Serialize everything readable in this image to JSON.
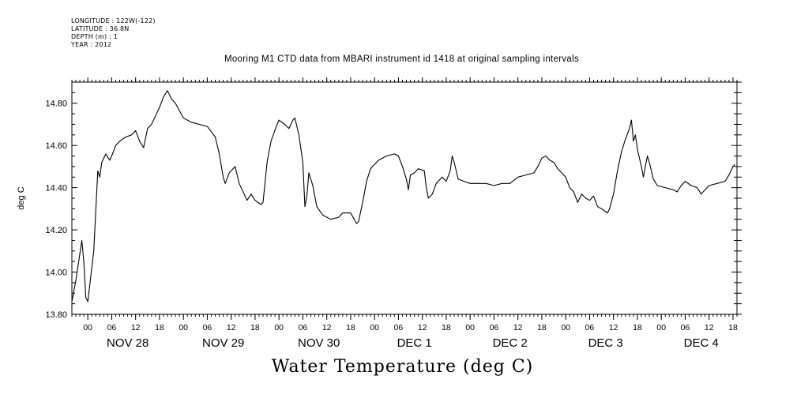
{
  "header_info": {
    "longitude": "LONGITUDE : 122W(-122)",
    "latitude": "LATITUDE : 36.8N",
    "depth": "DEPTH (m) : 1",
    "year": "YEAR : 2012"
  },
  "chart_data": {
    "type": "line",
    "title": "Mooring M1 CTD data from MBARI instrument id 1418 at original sampling intervals",
    "ylabel": "deg C",
    "xlabel": "Water Temperature (deg C)",
    "ylim": [
      13.8,
      14.9
    ],
    "yticks": [
      {
        "value": 13.8,
        "label": "13.80"
      },
      {
        "value": 14.0,
        "label": "14.00"
      },
      {
        "value": 14.2,
        "label": "14.20"
      },
      {
        "value": 14.4,
        "label": "14.40"
      },
      {
        "value": 14.6,
        "label": "14.60"
      },
      {
        "value": 14.8,
        "label": "14.80"
      }
    ],
    "xlim": [
      "2012-11-27 20:00",
      "2012-12-04 19:00"
    ],
    "x_hour_ticks": [
      {
        "t": "2012-11-28 00:00",
        "label": "00"
      },
      {
        "t": "2012-11-28 06:00",
        "label": "06"
      },
      {
        "t": "2012-11-28 12:00",
        "label": "12"
      },
      {
        "t": "2012-11-28 18:00",
        "label": "18"
      },
      {
        "t": "2012-11-29 00:00",
        "label": "00"
      },
      {
        "t": "2012-11-29 06:00",
        "label": "06"
      },
      {
        "t": "2012-11-29 12:00",
        "label": "12"
      },
      {
        "t": "2012-11-29 18:00",
        "label": "18"
      },
      {
        "t": "2012-11-30 00:00",
        "label": "00"
      },
      {
        "t": "2012-11-30 06:00",
        "label": "06"
      },
      {
        "t": "2012-11-30 12:00",
        "label": "12"
      },
      {
        "t": "2012-11-30 18:00",
        "label": "18"
      },
      {
        "t": "2012-12-01 00:00",
        "label": "00"
      },
      {
        "t": "2012-12-01 06:00",
        "label": "06"
      },
      {
        "t": "2012-12-01 12:00",
        "label": "12"
      },
      {
        "t": "2012-12-01 18:00",
        "label": "18"
      },
      {
        "t": "2012-12-02 00:00",
        "label": "00"
      },
      {
        "t": "2012-12-02 06:00",
        "label": "06"
      },
      {
        "t": "2012-12-02 12:00",
        "label": "12"
      },
      {
        "t": "2012-12-02 18:00",
        "label": "18"
      },
      {
        "t": "2012-12-03 00:00",
        "label": "00"
      },
      {
        "t": "2012-12-03 06:00",
        "label": "06"
      },
      {
        "t": "2012-12-03 12:00",
        "label": "12"
      },
      {
        "t": "2012-12-03 18:00",
        "label": "18"
      },
      {
        "t": "2012-12-04 00:00",
        "label": "00"
      },
      {
        "t": "2012-12-04 06:00",
        "label": "06"
      },
      {
        "t": "2012-12-04 12:00",
        "label": "12"
      },
      {
        "t": "2012-12-04 18:00",
        "label": "18"
      }
    ],
    "x_day_labels": [
      {
        "t": "2012-11-28 12:00",
        "label": "NOV 28"
      },
      {
        "t": "2012-11-29 12:00",
        "label": "NOV 29"
      },
      {
        "t": "2012-11-30 12:00",
        "label": "NOV 30"
      },
      {
        "t": "2012-12-01 12:00",
        "label": "DEC  1"
      },
      {
        "t": "2012-12-02 12:00",
        "label": "DEC  2"
      },
      {
        "t": "2012-12-03 12:00",
        "label": "DEC  3"
      },
      {
        "t": "2012-12-04 12:00",
        "label": "DEC  4"
      }
    ],
    "series": [
      {
        "color": "#000000",
        "points": [
          [
            "2012-11-27 20:00",
            13.86
          ],
          [
            "2012-11-27 21:00",
            13.96
          ],
          [
            "2012-11-27 22:30",
            14.15
          ],
          [
            "2012-11-27 23:00",
            14.05
          ],
          [
            "2012-11-27 23:30",
            13.88
          ],
          [
            "2012-11-28 00:00",
            13.86
          ],
          [
            "2012-11-28 01:30",
            14.1
          ],
          [
            "2012-11-28 02:30",
            14.48
          ],
          [
            "2012-11-28 03:00",
            14.45
          ],
          [
            "2012-11-28 03:30",
            14.52
          ],
          [
            "2012-11-28 04:30",
            14.56
          ],
          [
            "2012-11-28 05:30",
            14.53
          ],
          [
            "2012-11-28 06:00",
            14.55
          ],
          [
            "2012-11-28 07:00",
            14.6
          ],
          [
            "2012-11-28 08:00",
            14.62
          ],
          [
            "2012-11-28 09:30",
            14.64
          ],
          [
            "2012-11-28 11:00",
            14.65
          ],
          [
            "2012-11-28 12:00",
            14.67
          ],
          [
            "2012-11-28 13:00",
            14.62
          ],
          [
            "2012-11-28 14:00",
            14.59
          ],
          [
            "2012-11-28 15:00",
            14.68
          ],
          [
            "2012-11-28 16:00",
            14.7
          ],
          [
            "2012-11-28 17:00",
            14.74
          ],
          [
            "2012-11-28 18:00",
            14.78
          ],
          [
            "2012-11-28 19:00",
            14.83
          ],
          [
            "2012-11-28 20:00",
            14.86
          ],
          [
            "2012-11-28 21:00",
            14.82
          ],
          [
            "2012-11-28 22:00",
            14.8
          ],
          [
            "2012-11-29 00:00",
            14.73
          ],
          [
            "2012-11-29 02:00",
            14.71
          ],
          [
            "2012-11-29 04:00",
            14.7
          ],
          [
            "2012-11-29 06:00",
            14.69
          ],
          [
            "2012-11-29 08:00",
            14.64
          ],
          [
            "2012-11-29 09:00",
            14.56
          ],
          [
            "2012-11-29 10:00",
            14.45
          ],
          [
            "2012-11-29 10:30",
            14.42
          ],
          [
            "2012-11-29 11:30",
            14.47
          ],
          [
            "2012-11-29 12:30",
            14.49
          ],
          [
            "2012-11-29 13:00",
            14.5
          ],
          [
            "2012-11-29 14:00",
            14.42
          ],
          [
            "2012-11-29 15:00",
            14.38
          ],
          [
            "2012-11-29 16:00",
            14.34
          ],
          [
            "2012-11-29 17:00",
            14.37
          ],
          [
            "2012-11-29 18:00",
            14.34
          ],
          [
            "2012-11-29 19:30",
            14.32
          ],
          [
            "2012-11-29 20:00",
            14.33
          ],
          [
            "2012-11-29 21:00",
            14.52
          ],
          [
            "2012-11-29 22:00",
            14.62
          ],
          [
            "2012-11-29 23:30",
            14.7
          ],
          [
            "2012-11-30 00:00",
            14.72
          ],
          [
            "2012-11-30 01:30",
            14.7
          ],
          [
            "2012-11-30 02:30",
            14.68
          ],
          [
            "2012-11-30 03:30",
            14.72
          ],
          [
            "2012-11-30 04:00",
            14.73
          ],
          [
            "2012-11-30 05:00",
            14.65
          ],
          [
            "2012-11-30 06:00",
            14.52
          ],
          [
            "2012-11-30 06:30",
            14.31
          ],
          [
            "2012-11-30 07:00",
            14.36
          ],
          [
            "2012-11-30 07:30",
            14.47
          ],
          [
            "2012-11-30 08:30",
            14.41
          ],
          [
            "2012-11-30 09:30",
            14.31
          ],
          [
            "2012-11-30 11:00",
            14.27
          ],
          [
            "2012-11-30 13:00",
            14.25
          ],
          [
            "2012-11-30 15:00",
            14.26
          ],
          [
            "2012-11-30 16:00",
            14.28
          ],
          [
            "2012-11-30 18:00",
            14.28
          ],
          [
            "2012-11-30 19:30",
            14.23
          ],
          [
            "2012-11-30 20:00",
            14.24
          ],
          [
            "2012-11-30 21:00",
            14.33
          ],
          [
            "2012-11-30 22:00",
            14.43
          ],
          [
            "2012-11-30 23:00",
            14.49
          ],
          [
            "2012-12-01 01:00",
            14.53
          ],
          [
            "2012-12-01 03:00",
            14.55
          ],
          [
            "2012-12-01 05:00",
            14.56
          ],
          [
            "2012-12-01 06:00",
            14.55
          ],
          [
            "2012-12-01 07:00",
            14.5
          ],
          [
            "2012-12-01 08:00",
            14.44
          ],
          [
            "2012-12-01 08:30",
            14.39
          ],
          [
            "2012-12-01 09:00",
            14.46
          ],
          [
            "2012-12-01 10:00",
            14.47
          ],
          [
            "2012-12-01 11:00",
            14.49
          ],
          [
            "2012-12-01 12:30",
            14.48
          ],
          [
            "2012-12-01 13:00",
            14.4
          ],
          [
            "2012-12-01 13:30",
            14.35
          ],
          [
            "2012-12-01 14:30",
            14.37
          ],
          [
            "2012-12-01 15:30",
            14.42
          ],
          [
            "2012-12-01 17:00",
            14.45
          ],
          [
            "2012-12-01 18:00",
            14.43
          ],
          [
            "2012-12-01 19:00",
            14.48
          ],
          [
            "2012-12-01 19:30",
            14.55
          ],
          [
            "2012-12-01 20:00",
            14.52
          ],
          [
            "2012-12-01 21:00",
            14.44
          ],
          [
            "2012-12-01 22:30",
            14.43
          ],
          [
            "2012-12-02 00:00",
            14.42
          ],
          [
            "2012-12-02 02:00",
            14.42
          ],
          [
            "2012-12-02 04:00",
            14.42
          ],
          [
            "2012-12-02 06:00",
            14.41
          ],
          [
            "2012-12-02 08:00",
            14.42
          ],
          [
            "2012-12-02 10:00",
            14.42
          ],
          [
            "2012-12-02 12:00",
            14.45
          ],
          [
            "2012-12-02 14:00",
            14.46
          ],
          [
            "2012-12-02 16:00",
            14.47
          ],
          [
            "2012-12-02 17:00",
            14.5
          ],
          [
            "2012-12-02 18:00",
            14.54
          ],
          [
            "2012-12-02 19:00",
            14.55
          ],
          [
            "2012-12-02 20:00",
            14.53
          ],
          [
            "2012-12-02 21:00",
            14.52
          ],
          [
            "2012-12-02 22:00",
            14.49
          ],
          [
            "2012-12-03 00:00",
            14.45
          ],
          [
            "2012-12-03 01:00",
            14.4
          ],
          [
            "2012-12-03 02:00",
            14.38
          ],
          [
            "2012-12-03 03:00",
            14.33
          ],
          [
            "2012-12-03 04:00",
            14.37
          ],
          [
            "2012-12-03 05:00",
            14.35
          ],
          [
            "2012-12-03 06:00",
            14.34
          ],
          [
            "2012-12-03 07:00",
            14.36
          ],
          [
            "2012-12-03 08:00",
            14.31
          ],
          [
            "2012-12-03 09:00",
            14.3
          ],
          [
            "2012-12-03 10:30",
            14.28
          ],
          [
            "2012-12-03 11:00",
            14.3
          ],
          [
            "2012-12-03 12:00",
            14.37
          ],
          [
            "2012-12-03 13:00",
            14.48
          ],
          [
            "2012-12-03 14:00",
            14.57
          ],
          [
            "2012-12-03 15:00",
            14.63
          ],
          [
            "2012-12-03 16:00",
            14.68
          ],
          [
            "2012-12-03 16:30",
            14.72
          ],
          [
            "2012-12-03 17:00",
            14.62
          ],
          [
            "2012-12-03 17:30",
            14.65
          ],
          [
            "2012-12-03 18:00",
            14.58
          ],
          [
            "2012-12-03 19:00",
            14.5
          ],
          [
            "2012-12-03 19:30",
            14.45
          ],
          [
            "2012-12-03 20:00",
            14.5
          ],
          [
            "2012-12-03 20:30",
            14.55
          ],
          [
            "2012-12-03 21:00",
            14.52
          ],
          [
            "2012-12-03 22:00",
            14.44
          ],
          [
            "2012-12-03 23:00",
            14.41
          ],
          [
            "2012-12-04 01:00",
            14.4
          ],
          [
            "2012-12-04 03:00",
            14.39
          ],
          [
            "2012-12-04 04:00",
            14.38
          ],
          [
            "2012-12-04 05:00",
            14.41
          ],
          [
            "2012-12-04 06:00",
            14.43
          ],
          [
            "2012-12-04 07:30",
            14.41
          ],
          [
            "2012-12-04 09:00",
            14.4
          ],
          [
            "2012-12-04 10:00",
            14.37
          ],
          [
            "2012-12-04 11:00",
            14.39
          ],
          [
            "2012-12-04 12:00",
            14.41
          ],
          [
            "2012-12-04 14:00",
            14.42
          ],
          [
            "2012-12-04 16:00",
            14.43
          ],
          [
            "2012-12-04 17:00",
            14.46
          ],
          [
            "2012-12-04 18:00",
            14.5
          ],
          [
            "2012-12-04 18:30",
            14.51
          ]
        ]
      }
    ]
  }
}
